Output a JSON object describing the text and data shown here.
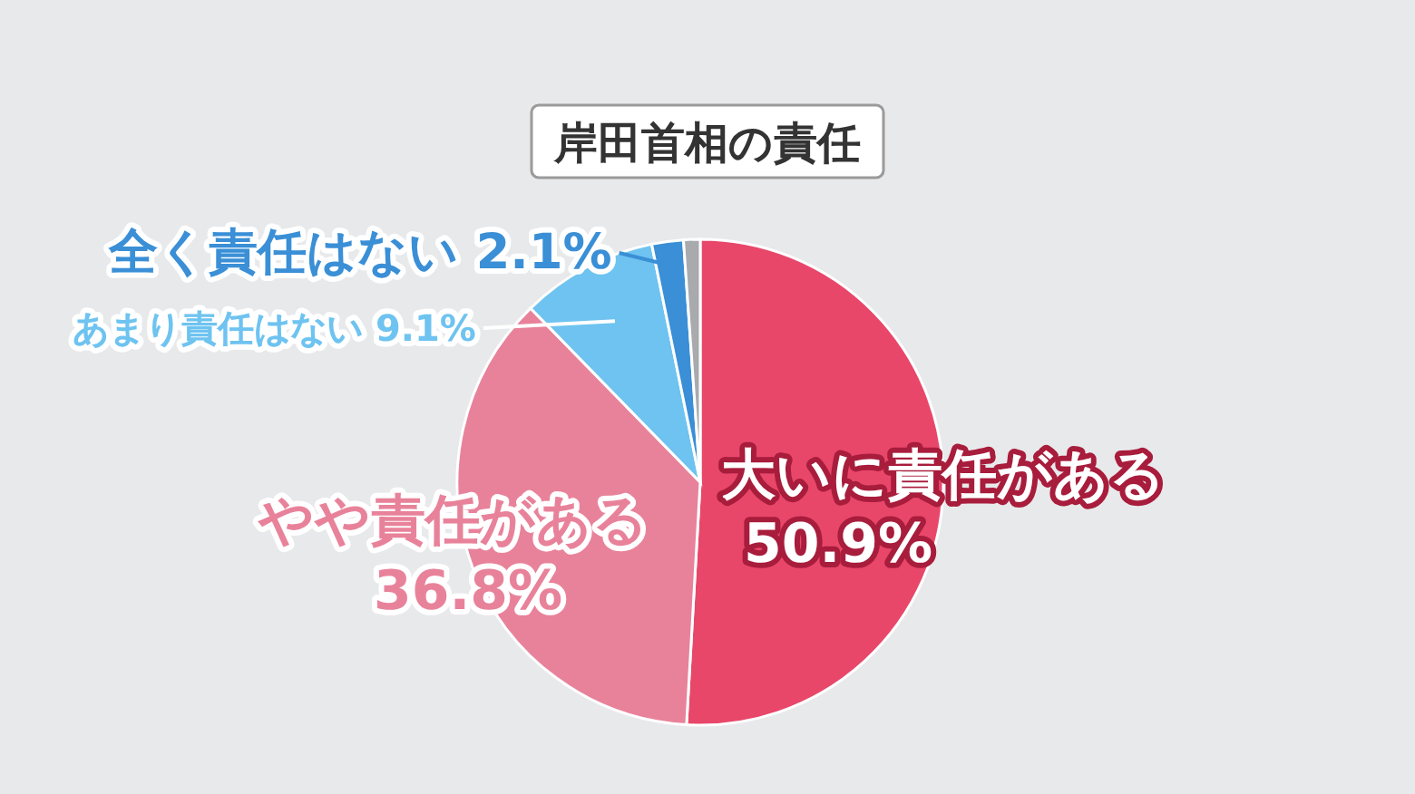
{
  "chart_data": {
    "type": "pie",
    "title": "岸田首相の責任",
    "categories": [
      "大いに責任がある",
      "やや責任がある",
      "あまり責任はない",
      "全く責任はない",
      null
    ],
    "values": [
      50.9,
      36.8,
      9.1,
      2.1,
      1.1
    ],
    "value_labels": [
      "50.9%",
      "36.8%",
      "9.1%",
      "2.1%",
      null
    ],
    "colors": [
      "#e8476a",
      "#e8829a",
      "#6ec3f0",
      "#3a8fd6",
      "#a9aaad"
    ]
  }
}
